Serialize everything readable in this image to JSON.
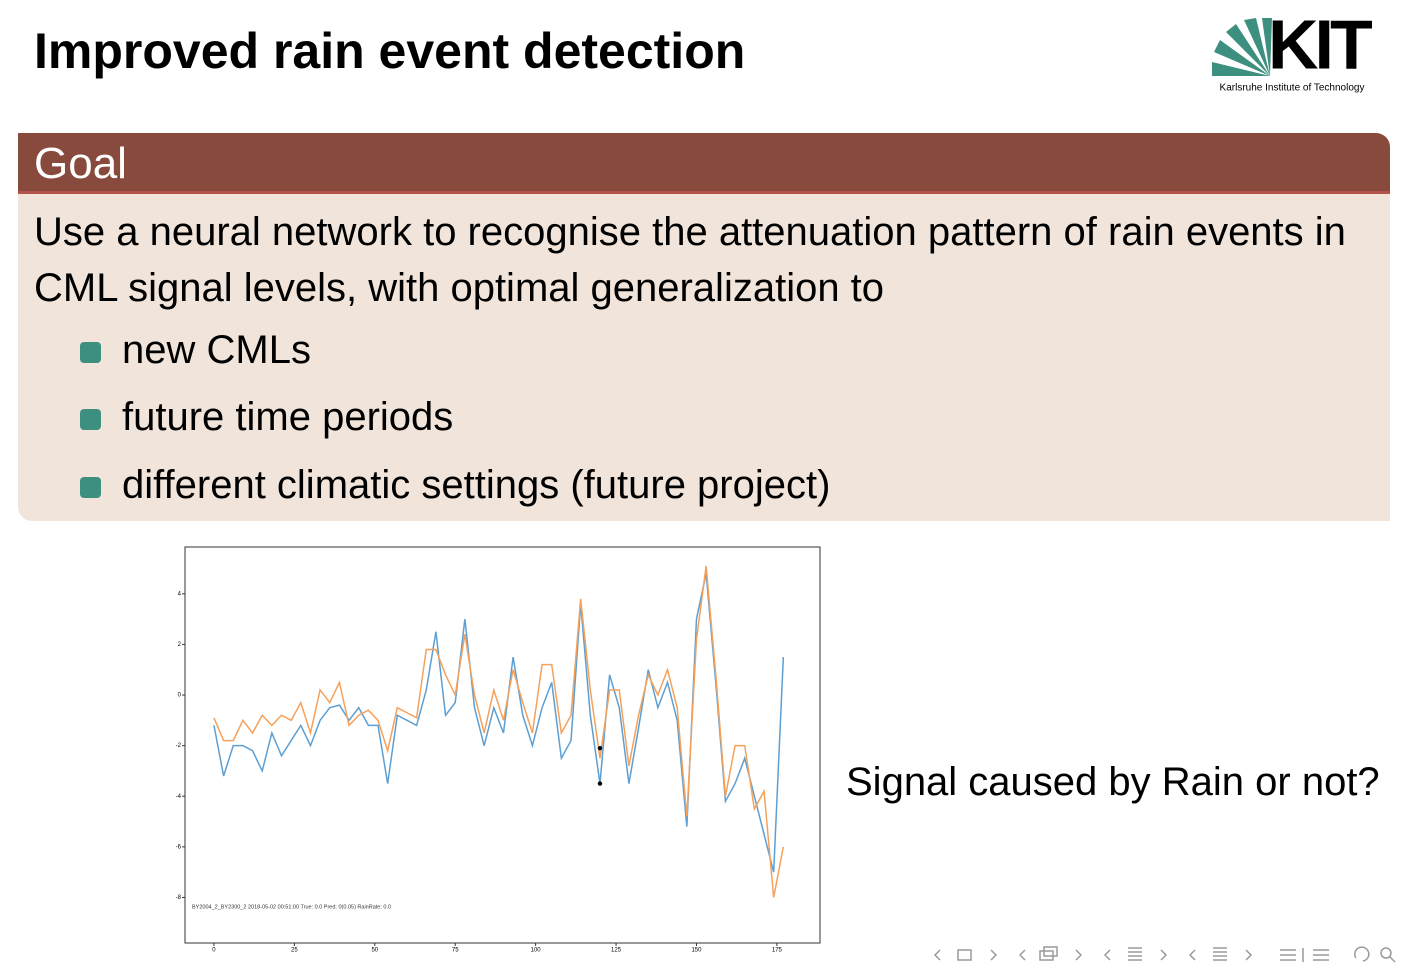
{
  "header": {
    "title": "Improved rain event detection",
    "logo": {
      "name": "KIT",
      "subtitle": "Karlsruhe Institute of Technology"
    }
  },
  "block": {
    "title": "Goal",
    "text": "Use a neural network to recognise the attenuation pattern of rain events in CML signal levels, with optimal generalization to",
    "bullets": [
      "new CMLs",
      "future time periods",
      "different climatic settings (future project)"
    ]
  },
  "side_text": "Signal caused by Rain or not?",
  "chart_data": {
    "type": "line",
    "annotation": "BY2004_2_BY2300_2  2018-05-02 00:51:00 True: 0.0 Pred: 0(0.05) RainRate: 0.0",
    "x": [
      0,
      3,
      6,
      9,
      12,
      15,
      18,
      21,
      24,
      27,
      30,
      33,
      36,
      39,
      42,
      45,
      48,
      51,
      54,
      57,
      60,
      63,
      66,
      69,
      72,
      75,
      78,
      81,
      84,
      87,
      90,
      93,
      96,
      99,
      102,
      105,
      108,
      111,
      114,
      117,
      120,
      123,
      126,
      129,
      132,
      135,
      138,
      141,
      144,
      147,
      150,
      153,
      156,
      159,
      162,
      165,
      168,
      171,
      174,
      177
    ],
    "series": [
      {
        "name": "blue",
        "color": "#5b9fd4",
        "values": [
          -1.2,
          -3.2,
          -2.0,
          -2.0,
          -2.2,
          -3.0,
          -1.5,
          -2.4,
          -1.8,
          -1.2,
          -2.0,
          -1.0,
          -0.5,
          -0.4,
          -1.0,
          -0.5,
          -1.2,
          -1.2,
          -3.5,
          -0.8,
          -1.0,
          -1.2,
          0.2,
          2.5,
          -0.8,
          -0.3,
          3.0,
          -0.5,
          -2.0,
          -0.5,
          -1.5,
          1.5,
          -0.8,
          -2.0,
          -0.5,
          0.5,
          -2.5,
          -1.8,
          3.6,
          -0.8,
          -3.5,
          0.8,
          -0.5,
          -3.5,
          -1.3,
          1.0,
          -0.5,
          0.5,
          -1.0,
          -5.2,
          3.0,
          4.8,
          0.5,
          -4.2,
          -3.5,
          -2.5,
          -4.0,
          -5.5,
          -7.0,
          1.5
        ]
      },
      {
        "name": "orange",
        "color": "#f5a15a",
        "values": [
          -0.9,
          -1.8,
          -1.8,
          -1.0,
          -1.5,
          -0.8,
          -1.2,
          -0.8,
          -1.0,
          -0.3,
          -1.5,
          0.2,
          -0.3,
          0.5,
          -1.2,
          -0.8,
          -0.6,
          -1.0,
          -2.2,
          -0.5,
          -0.7,
          -0.9,
          1.8,
          1.8,
          0.8,
          0.0,
          2.4,
          0.0,
          -1.5,
          0.2,
          -1.0,
          1.0,
          -0.3,
          -1.5,
          1.2,
          1.2,
          -1.5,
          -0.8,
          3.8,
          0.2,
          -2.5,
          0.2,
          0.2,
          -2.8,
          -0.8,
          0.8,
          0.0,
          1.0,
          -0.5,
          -4.8,
          2.2,
          5.1,
          0.8,
          -4.0,
          -2.0,
          -2.0,
          -4.5,
          -3.8,
          -8.0,
          -6.0
        ]
      }
    ],
    "points": [
      {
        "x": 120,
        "y": -2.1
      },
      {
        "x": 120,
        "y": -3.5
      }
    ],
    "xlim": [
      -9,
      188.4
    ],
    "ylim": [
      -9.8,
      5.85
    ],
    "xticks": [
      0,
      25,
      50,
      75,
      100,
      125,
      150,
      175
    ],
    "yticks": [
      -8,
      -6,
      -4,
      -2,
      0,
      2,
      4
    ]
  }
}
